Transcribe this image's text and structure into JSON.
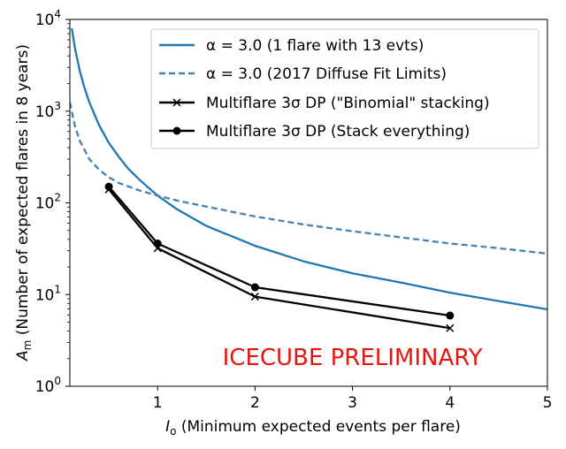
{
  "chart_data": {
    "type": "line",
    "xlabel": {
      "main": "I",
      "sub": "o",
      "rest": " (Minimum expected events per flare)"
    },
    "ylabel": {
      "main": "A",
      "sub": "m",
      "rest": " (Number of expected flares in 8 years)"
    },
    "xlim": [
      0.1,
      5
    ],
    "ylim": [
      1,
      10000
    ],
    "yscale": "log",
    "x_ticks": [
      {
        "value": 1,
        "label": "1"
      },
      {
        "value": 2,
        "label": "2"
      },
      {
        "value": 3,
        "label": "3"
      },
      {
        "value": 4,
        "label": "4"
      },
      {
        "value": 5,
        "label": "5"
      }
    ],
    "y_ticks": [
      {
        "value": 1,
        "base": "10",
        "exp": "0"
      },
      {
        "value": 10,
        "base": "10",
        "exp": "1"
      },
      {
        "value": 100,
        "base": "10",
        "exp": "2"
      },
      {
        "value": 1000,
        "base": "10",
        "exp": "3"
      },
      {
        "value": 10000,
        "base": "10",
        "exp": "4"
      }
    ],
    "grid": false,
    "legend_position": "top-right",
    "annotation": {
      "text": "ICECUBE PRELIMINARY",
      "color": "#e8150e",
      "x": 3.0,
      "y": 1.7
    },
    "series": [
      {
        "name": "α = 3.0 (1 flare with 13 evts)",
        "style": "solid",
        "color": "#1f77b4",
        "marker": "none",
        "x": [
          0.12,
          0.15,
          0.2,
          0.25,
          0.3,
          0.4,
          0.5,
          0.6,
          0.7,
          0.8,
          0.9,
          1.0,
          1.2,
          1.5,
          2.0,
          2.5,
          3.0,
          3.5,
          4.0,
          4.5,
          5.0
        ],
        "y": [
          8000,
          5000,
          2800,
          1800,
          1250,
          700,
          450,
          320,
          235,
          185,
          148,
          120,
          85,
          56,
          34,
          23,
          17,
          13.5,
          10.5,
          8.5,
          6.9
        ]
      },
      {
        "name": "α = 3.0 (2017 Diffuse Fit Limits)",
        "style": "dashed",
        "color": "#4682b4",
        "marker": "none",
        "x": [
          0.1,
          0.15,
          0.2,
          0.3,
          0.4,
          0.5,
          0.6,
          0.8,
          1.0,
          1.2,
          1.5,
          2.0,
          2.5,
          3.0,
          3.5,
          4.0,
          4.5,
          5.0
        ],
        "y": [
          1250,
          700,
          480,
          300,
          230,
          190,
          165,
          138,
          120,
          106,
          91,
          71,
          58,
          49,
          42,
          36,
          32,
          28
        ]
      },
      {
        "name": "Multiflare 3σ DP (\"Binomial\" stacking)",
        "style": "solid",
        "color": "#000000",
        "marker": "x",
        "x": [
          0.5,
          1.0,
          2.0,
          4.0
        ],
        "y": [
          140,
          32,
          9.5,
          4.3
        ]
      },
      {
        "name": "Multiflare 3σ DP (Stack everything)",
        "style": "solid",
        "color": "#000000",
        "marker": "circle",
        "x": [
          0.5,
          1.0,
          2.0,
          4.0
        ],
        "y": [
          150,
          36,
          12,
          5.9
        ]
      }
    ]
  }
}
